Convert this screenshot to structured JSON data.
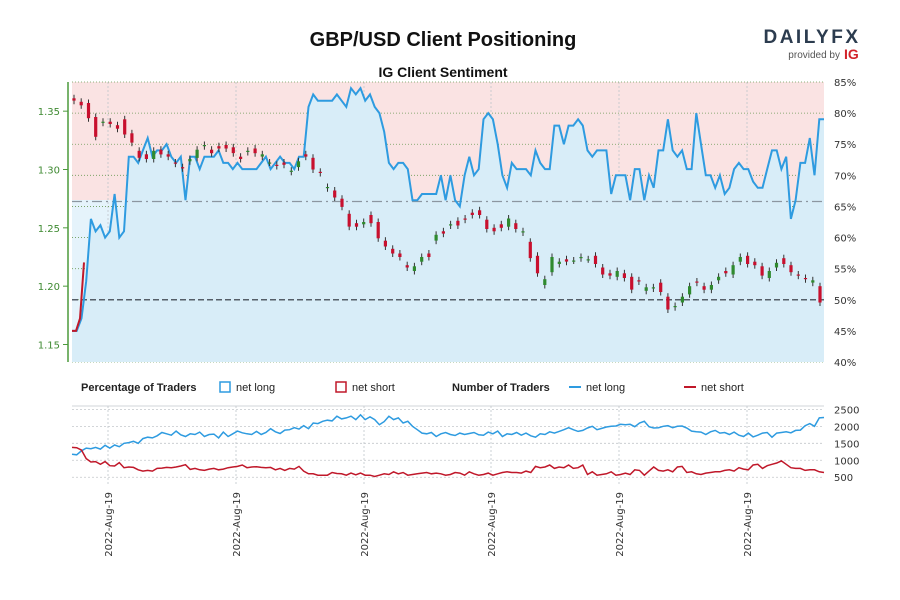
{
  "chart_data": {
    "type": "line",
    "title": "GBP/USD Client Positioning",
    "subtitle": "IG Client Sentiment",
    "brand": {
      "logo_text": "DAILYFX",
      "tagline": "provided by",
      "partner": "IG"
    },
    "price_axis": {
      "ticks": [
        "1.15",
        "1.20",
        "1.25",
        "1.30",
        "1.35"
      ],
      "ylim": [
        1.135,
        1.375
      ]
    },
    "pct_axis": {
      "ticks": [
        "40%",
        "45%",
        "50%",
        "55%",
        "60%",
        "65%",
        "70%",
        "75%",
        "80%",
        "85%"
      ],
      "ylim": [
        40,
        85
      ]
    },
    "count_axis": {
      "ticks": [
        "500",
        "1000",
        "1500",
        "2000",
        "2500"
      ],
      "ylim": [
        300,
        2600
      ]
    },
    "x_ticks": [
      "2022-Aug-19",
      "2022-Aug-19",
      "2022-Aug-19",
      "2022-Aug-19",
      "2022-Aug-19",
      "2022-Aug-19"
    ],
    "legend": {
      "pct_heading": "Percentage of Traders",
      "pct_long": "net long",
      "pct_short": "net short",
      "num_heading": "Number of Traders",
      "num_long": "net long",
      "num_short": "net short"
    },
    "reference_lines": {
      "pct_upper": 65.8,
      "pct_lower": 50
    },
    "series": [
      {
        "name": "Percentage of traders net long",
        "values": [
          45,
          45,
          47,
          53,
          63,
          61,
          62,
          60,
          61,
          67,
          60,
          61,
          73,
          73,
          72,
          74,
          76,
          73,
          74,
          74,
          75,
          73,
          72,
          73,
          66,
          73,
          73,
          71,
          73,
          73,
          73,
          74,
          72,
          72,
          71,
          72,
          71,
          71,
          71,
          71,
          72,
          73,
          71,
          72,
          73,
          72,
          72,
          71,
          73,
          73,
          81,
          83,
          82,
          82,
          82,
          82,
          83,
          82,
          81,
          84,
          83,
          84,
          82,
          83,
          81,
          80,
          77,
          72,
          71,
          72,
          72,
          71,
          66,
          66,
          67,
          67,
          67,
          67,
          70,
          66,
          70,
          66,
          65,
          70,
          73,
          70,
          71,
          79,
          80,
          79,
          75,
          70,
          68,
          72,
          71,
          71,
          71,
          70,
          74,
          72,
          71,
          71,
          78,
          78,
          75,
          78,
          78,
          79,
          78,
          74,
          73,
          74,
          74,
          74,
          67,
          70,
          70,
          70,
          66,
          71,
          71,
          66,
          70,
          68,
          74,
          74,
          79,
          74,
          73,
          74,
          71,
          71,
          80,
          75,
          70,
          70,
          68,
          70,
          67,
          68,
          71,
          72,
          71,
          71,
          69,
          68,
          68,
          71,
          74,
          74,
          71,
          73,
          63,
          66,
          72,
          72,
          76,
          70,
          79,
          79
        ]
      },
      {
        "name": "Percentage of traders net short",
        "values": [
          55,
          55,
          53,
          47,
          37,
          39,
          38,
          40,
          39,
          33,
          40,
          39,
          27,
          27,
          28,
          26,
          24,
          27,
          26,
          26,
          25,
          27,
          28,
          27,
          34,
          27,
          27,
          29,
          27,
          27,
          27,
          26,
          28,
          28,
          29,
          28,
          29,
          29,
          29,
          29,
          28,
          27,
          29,
          28,
          27,
          28,
          28,
          29,
          27,
          27,
          19,
          17,
          18,
          18,
          18,
          18,
          17,
          18,
          19,
          16,
          17,
          16,
          18,
          17,
          19,
          20,
          23,
          28,
          29,
          28,
          28,
          29,
          34,
          34,
          33,
          33,
          33,
          33,
          30,
          34,
          30,
          34,
          35,
          30,
          27,
          30,
          29,
          21,
          20,
          21,
          25,
          30,
          32,
          28,
          29,
          29,
          29,
          30,
          26,
          28,
          29,
          29,
          22,
          22,
          25,
          22,
          22,
          21,
          22,
          26,
          27,
          26,
          26,
          26,
          33,
          30,
          30,
          30,
          34,
          29,
          29,
          34,
          30,
          32,
          26,
          26,
          21,
          26,
          27,
          26,
          29,
          29,
          20,
          25,
          30,
          30,
          32,
          30,
          33,
          32,
          29,
          28,
          29,
          29,
          31,
          32,
          32,
          29,
          26,
          26,
          29,
          27,
          37,
          34,
          28,
          28,
          24,
          30,
          21,
          21
        ]
      },
      {
        "name": "Number of traders net long",
        "values": [
          1180,
          1160,
          1280,
          1360,
          1340,
          1380,
          1330,
          1440,
          1360,
          1450,
          1400,
          1500,
          1520,
          1560,
          1500,
          1640,
          1680,
          1660,
          1720,
          1820,
          1780,
          1740,
          1860,
          1750,
          1700,
          1780,
          1760,
          1830,
          1700,
          1760,
          1770,
          1660,
          1830,
          1700,
          1780,
          1860,
          1810,
          1780,
          1760,
          1850,
          1760,
          1820,
          1930,
          1840,
          1790,
          1890,
          1900,
          1960,
          1920,
          2020,
          1930,
          2100,
          2080,
          2150,
          2180,
          2160,
          2300,
          2220,
          2250,
          2300,
          2200,
          2340,
          2200,
          2280,
          2200,
          2050,
          2140,
          2300,
          2200,
          2250,
          2100,
          2150,
          2000,
          1900,
          1800,
          1780,
          1820,
          1700,
          1780,
          1820,
          1760,
          1730,
          1800,
          1760,
          1790,
          1820,
          1750,
          1740,
          1830,
          1780,
          1860,
          1700,
          1780,
          1760,
          1820,
          1740,
          1800,
          1720,
          1680,
          1780,
          1760,
          1840,
          1800,
          1850,
          1900,
          1960,
          1900,
          1850,
          1880,
          1950,
          2000,
          1900,
          1940,
          1980,
          2000,
          2010,
          2060,
          2050,
          2060,
          1990,
          2100,
          2150,
          1990,
          1950,
          1960,
          2000,
          2020,
          1960,
          2000,
          2010,
          1950,
          1860,
          1840,
          1830,
          1760,
          1840,
          1880,
          1800,
          1820,
          1760,
          1830,
          1740,
          1700,
          1800,
          1690,
          1740,
          1800,
          1820,
          1680,
          1800,
          1820,
          1840,
          1810,
          1880,
          1890,
          2020,
          2080,
          2000,
          2250,
          2260
        ]
      },
      {
        "name": "Number of traders net short",
        "values": [
          1380,
          1370,
          1300,
          1050,
          950,
          960,
          880,
          960,
          840,
          830,
          930,
          780,
          800,
          790,
          720,
          680,
          700,
          680,
          760,
          770,
          790,
          780,
          800,
          830,
          870,
          730,
          760,
          720,
          700,
          740,
          760,
          720,
          740,
          780,
          800,
          820,
          860,
          780,
          800,
          810,
          790,
          780,
          790,
          720,
          760,
          700,
          760,
          740,
          820,
          680,
          600,
          600,
          560,
          560,
          560,
          640,
          610,
          600,
          560,
          620,
          570,
          620,
          560,
          560,
          520,
          560,
          600,
          580,
          660,
          600,
          640,
          560,
          580,
          600,
          620,
          640,
          600,
          620,
          600,
          560,
          580,
          640,
          620,
          560,
          660,
          600,
          560,
          580,
          620,
          560,
          600,
          640,
          660,
          640,
          640,
          620,
          680,
          640,
          820,
          780,
          800,
          860,
          760,
          800,
          780,
          860,
          760,
          780,
          860,
          580,
          660,
          560,
          580,
          600,
          660,
          560,
          580,
          620,
          580,
          720,
          700,
          560,
          680,
          800,
          700,
          680,
          720,
          660,
          800,
          820,
          640,
          660,
          600,
          580,
          620,
          640,
          660,
          660,
          700,
          720,
          680,
          780,
          740,
          720,
          860,
          880,
          760,
          840,
          880,
          920,
          980,
          880,
          780,
          760,
          760,
          700,
          720,
          720,
          660,
          640
        ]
      }
    ],
    "candles": [
      [
        1.361,
        1.359
      ],
      [
        1.358,
        1.355
      ],
      [
        1.357,
        1.344
      ],
      [
        1.345,
        1.328
      ],
      [
        1.34,
        1.341
      ],
      [
        1.341,
        1.339
      ],
      [
        1.338,
        1.335
      ],
      [
        1.343,
        1.33
      ],
      [
        1.331,
        1.323
      ],
      [
        1.316,
        1.31
      ],
      [
        1.313,
        1.309
      ],
      [
        1.309,
        1.316
      ],
      [
        1.317,
        1.313
      ],
      [
        1.313,
        1.311
      ],
      [
        1.306,
        1.305
      ],
      [
        1.302,
        1.301
      ],
      [
        1.307,
        1.309
      ],
      [
        1.31,
        1.317
      ],
      [
        1.32,
        1.321
      ],
      [
        1.317,
        1.314
      ],
      [
        1.32,
        1.318
      ],
      [
        1.321,
        1.318
      ],
      [
        1.319,
        1.314
      ],
      [
        1.311,
        1.309
      ],
      [
        1.315,
        1.316
      ],
      [
        1.318,
        1.314
      ],
      [
        1.311,
        1.313
      ],
      [
        1.306,
        1.306
      ],
      [
        1.304,
        1.303
      ],
      [
        1.306,
        1.304
      ],
      [
        1.298,
        1.299
      ],
      [
        1.302,
        1.307
      ],
      [
        1.313,
        1.311
      ],
      [
        1.31,
        1.3
      ],
      [
        1.298,
        1.297
      ],
      [
        1.284,
        1.285
      ],
      [
        1.282,
        1.276
      ],
      [
        1.275,
        1.268
      ],
      [
        1.262,
        1.251
      ],
      [
        1.254,
        1.251
      ],
      [
        1.253,
        1.255
      ],
      [
        1.261,
        1.254
      ],
      [
        1.255,
        1.241
      ],
      [
        1.239,
        1.234
      ],
      [
        1.232,
        1.228
      ],
      [
        1.228,
        1.225
      ],
      [
        1.218,
        1.216
      ],
      [
        1.213,
        1.217
      ],
      [
        1.221,
        1.225
      ],
      [
        1.228,
        1.225
      ],
      [
        1.239,
        1.244
      ],
      [
        1.247,
        1.245
      ],
      [
        1.252,
        1.253
      ],
      [
        1.256,
        1.252
      ],
      [
        1.258,
        1.257
      ],
      [
        1.263,
        1.261
      ],
      [
        1.265,
        1.261
      ],
      [
        1.257,
        1.249
      ],
      [
        1.25,
        1.247
      ],
      [
        1.253,
        1.25
      ],
      [
        1.251,
        1.258
      ],
      [
        1.254,
        1.249
      ],
      [
        1.246,
        1.247
      ],
      [
        1.238,
        1.224
      ],
      [
        1.226,
        1.211
      ],
      [
        1.201,
        1.206
      ],
      [
        1.212,
        1.225
      ],
      [
        1.219,
        1.221
      ],
      [
        1.223,
        1.221
      ],
      [
        1.222,
        1.222
      ],
      [
        1.224,
        1.225
      ],
      [
        1.223,
        1.223
      ],
      [
        1.226,
        1.219
      ],
      [
        1.216,
        1.21
      ],
      [
        1.211,
        1.209
      ],
      [
        1.208,
        1.213
      ],
      [
        1.211,
        1.207
      ],
      [
        1.208,
        1.197
      ],
      [
        1.205,
        1.204
      ],
      [
        1.196,
        1.199
      ],
      [
        1.198,
        1.199
      ],
      [
        1.203,
        1.195
      ],
      [
        1.191,
        1.18
      ],
      [
        1.182,
        1.183
      ],
      [
        1.186,
        1.191
      ],
      [
        1.193,
        1.2
      ],
      [
        1.204,
        1.203
      ],
      [
        1.2,
        1.197
      ],
      [
        1.197,
        1.201
      ],
      [
        1.205,
        1.208
      ],
      [
        1.213,
        1.211
      ],
      [
        1.21,
        1.218
      ],
      [
        1.221,
        1.225
      ],
      [
        1.226,
        1.219
      ],
      [
        1.221,
        1.218
      ],
      [
        1.217,
        1.209
      ],
      [
        1.207,
        1.213
      ],
      [
        1.216,
        1.22
      ],
      [
        1.224,
        1.219
      ],
      [
        1.218,
        1.212
      ],
      [
        1.21,
        1.209
      ],
      [
        1.207,
        1.206
      ],
      [
        1.203,
        1.205
      ],
      [
        1.2,
        1.186
      ]
    ]
  }
}
